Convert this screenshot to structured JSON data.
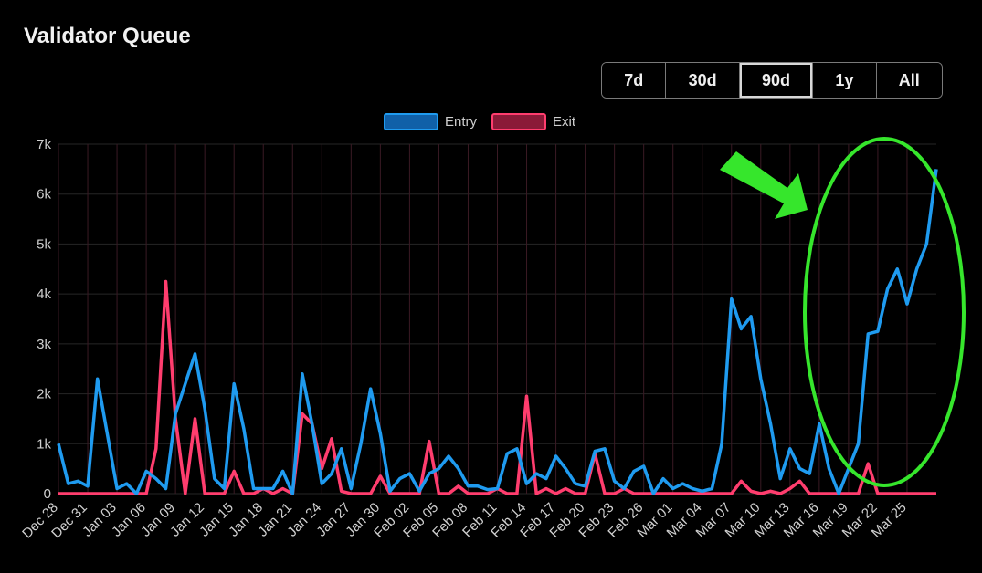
{
  "header": {
    "title": "Validator Queue"
  },
  "range": {
    "buttons": [
      "7d",
      "30d",
      "90d",
      "1y",
      "All"
    ],
    "active": "90d"
  },
  "colors": {
    "entry": "#1f9bf0",
    "exit": "#ff3d6e",
    "annotation": "#36e62c"
  },
  "chart_data": {
    "type": "line",
    "x_labels": [
      "Dec 28",
      "Dec 31",
      "Jan 03",
      "Jan 06",
      "Jan 09",
      "Jan 12",
      "Jan 15",
      "Jan 18",
      "Jan 21",
      "Jan 24",
      "Jan 27",
      "Jan 30",
      "Feb 02",
      "Feb 05",
      "Feb 08",
      "Feb 11",
      "Feb 14",
      "Feb 17",
      "Feb 20",
      "Feb 23",
      "Feb 26",
      "Mar 01",
      "Mar 04",
      "Mar 07",
      "Mar 10",
      "Mar 13",
      "Mar 16",
      "Mar 19",
      "Mar 22",
      "Mar 25"
    ],
    "y_ticks": [
      "0",
      "1k",
      "2k",
      "3k",
      "4k",
      "5k",
      "6k",
      "7k"
    ],
    "ylim": [
      0,
      7000
    ],
    "grid": true,
    "legend_position": "top-center",
    "series": [
      {
        "name": "Entry",
        "color": "#1f9bf0",
        "values": [
          1000,
          200,
          250,
          150,
          2300,
          1200,
          100,
          200,
          0,
          450,
          300,
          100,
          1600,
          2200,
          2800,
          1700,
          300,
          100,
          2200,
          1300,
          100,
          100,
          100,
          450,
          0,
          2400,
          1400,
          200,
          400,
          900,
          100,
          1000,
          2100,
          1200,
          50,
          300,
          400,
          50,
          400,
          500,
          750,
          500,
          150,
          150,
          80,
          100,
          800,
          900,
          200,
          400,
          300,
          750,
          500,
          200,
          150,
          850,
          900,
          250,
          100,
          450,
          550,
          0,
          300,
          100,
          200,
          100,
          50,
          100,
          1000,
          3900,
          3300,
          3550,
          2300,
          1400,
          300,
          900,
          500,
          400,
          1400,
          500,
          0,
          500,
          1000,
          3200,
          3250,
          4100,
          4500,
          3800,
          4500,
          5000,
          6500
        ]
      },
      {
        "name": "Exit",
        "color": "#ff3d6e",
        "values": [
          0,
          0,
          0,
          0,
          0,
          0,
          0,
          0,
          0,
          0,
          900,
          4250,
          1500,
          0,
          1500,
          0,
          0,
          0,
          450,
          0,
          0,
          100,
          0,
          100,
          0,
          1600,
          1400,
          500,
          1100,
          50,
          0,
          0,
          0,
          350,
          0,
          0,
          0,
          0,
          1050,
          0,
          0,
          150,
          0,
          0,
          0,
          100,
          0,
          0,
          1950,
          0,
          100,
          0,
          100,
          0,
          0,
          800,
          0,
          0,
          100,
          0,
          0,
          0,
          0,
          0,
          0,
          0,
          0,
          0,
          0,
          0,
          250,
          50,
          0,
          50,
          0,
          100,
          250,
          0,
          0,
          0,
          0,
          0,
          0,
          600,
          0,
          0,
          0,
          0,
          0,
          0,
          0
        ]
      }
    ]
  }
}
